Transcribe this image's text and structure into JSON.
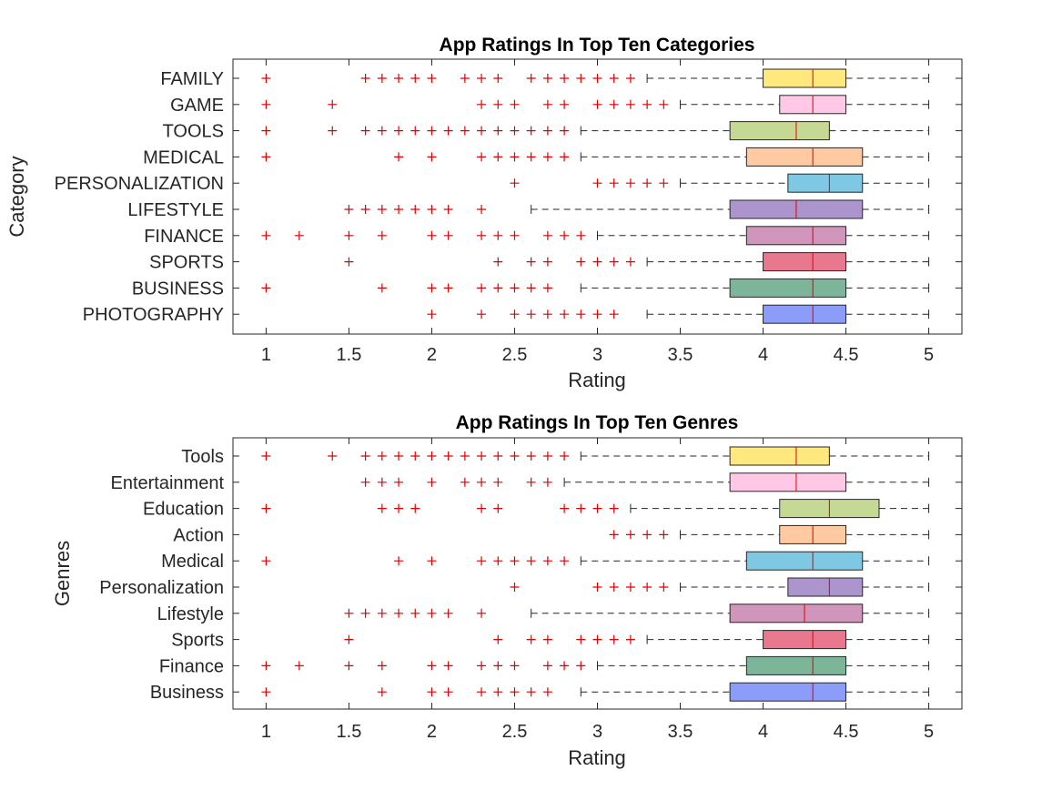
{
  "chart_data": [
    {
      "type": "boxplot",
      "title": "App Ratings In Top Ten Categories",
      "xlabel": "Rating",
      "ylabel": "Category",
      "xlim": [
        0.8,
        5.2
      ],
      "xticks": [
        "1",
        "1.5",
        "2",
        "2.5",
        "3",
        "3.5",
        "4",
        "4.5",
        "5"
      ],
      "grid": false,
      "outlier_color": "#e00000",
      "series": [
        {
          "name": "FAMILY",
          "color": "#ffe97f",
          "whisker_low": 3.3,
          "q1": 4.0,
          "median": 4.3,
          "q3": 4.5,
          "whisker_high": 5.0,
          "outliers": [
            1.0,
            1.6,
            1.7,
            1.8,
            1.9,
            2.0,
            2.2,
            2.3,
            2.4,
            2.6,
            2.7,
            2.8,
            2.9,
            3.0,
            3.1,
            3.2
          ]
        },
        {
          "name": "GAME",
          "color": "#ffc9e6",
          "whisker_low": 3.5,
          "q1": 4.1,
          "median": 4.3,
          "q3": 4.5,
          "whisker_high": 5.0,
          "outliers": [
            1.0,
            1.4,
            2.3,
            2.4,
            2.5,
            2.7,
            2.8,
            3.0,
            3.1,
            3.2,
            3.3,
            3.4
          ]
        },
        {
          "name": "TOOLS",
          "color": "#c6d994",
          "whisker_low": 2.9,
          "q1": 3.8,
          "median": 4.2,
          "q3": 4.4,
          "whisker_high": 5.0,
          "outliers": [
            1.0,
            1.4,
            1.6,
            1.7,
            1.8,
            1.9,
            2.0,
            2.1,
            2.2,
            2.3,
            2.4,
            2.5,
            2.6,
            2.7,
            2.8
          ]
        },
        {
          "name": "MEDICAL",
          "color": "#ffc9a1",
          "whisker_low": 2.9,
          "q1": 3.9,
          "median": 4.3,
          "q3": 4.6,
          "whisker_high": 5.0,
          "outliers": [
            1.0,
            1.8,
            2.0,
            2.3,
            2.4,
            2.5,
            2.6,
            2.7,
            2.8
          ]
        },
        {
          "name": "PERSONALIZATION",
          "color": "#7ec8e3",
          "whisker_low": 3.5,
          "q1": 4.15,
          "median": 4.4,
          "q3": 4.6,
          "whisker_high": 5.0,
          "outliers": [
            2.5,
            3.0,
            3.1,
            3.2,
            3.3,
            3.4
          ]
        },
        {
          "name": "LIFESTYLE",
          "color": "#ac95cc",
          "whisker_low": 2.6,
          "q1": 3.8,
          "median": 4.2,
          "q3": 4.6,
          "whisker_high": 5.0,
          "outliers": [
            1.5,
            1.6,
            1.7,
            1.8,
            1.9,
            2.0,
            2.1,
            2.3
          ]
        },
        {
          "name": "FINANCE",
          "color": "#cf95bb",
          "whisker_low": 3.0,
          "q1": 3.9,
          "median": 4.3,
          "q3": 4.5,
          "whisker_high": 5.0,
          "outliers": [
            1.0,
            1.2,
            1.5,
            1.7,
            2.0,
            2.1,
            2.3,
            2.4,
            2.5,
            2.7,
            2.8,
            2.9
          ]
        },
        {
          "name": "SPORTS",
          "color": "#e8788e",
          "whisker_low": 3.3,
          "q1": 4.0,
          "median": 4.3,
          "q3": 4.5,
          "whisker_high": 5.0,
          "outliers": [
            1.5,
            2.4,
            2.6,
            2.7,
            2.9,
            3.0,
            3.1,
            3.2
          ]
        },
        {
          "name": "BUSINESS",
          "color": "#7db59b",
          "whisker_low": 2.9,
          "q1": 3.8,
          "median": 4.3,
          "q3": 4.5,
          "whisker_high": 5.0,
          "outliers": [
            1.0,
            1.7,
            2.0,
            2.1,
            2.3,
            2.4,
            2.5,
            2.6,
            2.7
          ]
        },
        {
          "name": "PHOTOGRAPHY",
          "color": "#8c9cf9",
          "whisker_low": 3.3,
          "q1": 4.0,
          "median": 4.3,
          "q3": 4.5,
          "whisker_high": 5.0,
          "outliers": [
            2.0,
            2.3,
            2.5,
            2.6,
            2.7,
            2.8,
            2.9,
            3.0,
            3.1
          ]
        }
      ]
    },
    {
      "type": "boxplot",
      "title": "App Ratings In Top Ten Genres",
      "xlabel": "Rating",
      "ylabel": "Genres",
      "xlim": [
        0.8,
        5.2
      ],
      "xticks": [
        "1",
        "1.5",
        "2",
        "2.5",
        "3",
        "3.5",
        "4",
        "4.5",
        "5"
      ],
      "grid": false,
      "outlier_color": "#e00000",
      "series": [
        {
          "name": "Tools",
          "color": "#ffe97f",
          "whisker_low": 2.9,
          "q1": 3.8,
          "median": 4.2,
          "q3": 4.4,
          "whisker_high": 5.0,
          "outliers": [
            1.0,
            1.4,
            1.6,
            1.7,
            1.8,
            1.9,
            2.0,
            2.1,
            2.2,
            2.3,
            2.4,
            2.5,
            2.6,
            2.7,
            2.8
          ]
        },
        {
          "name": "Entertainment",
          "color": "#ffc9e6",
          "whisker_low": 2.8,
          "q1": 3.8,
          "median": 4.2,
          "q3": 4.5,
          "whisker_high": 5.0,
          "outliers": [
            1.6,
            1.7,
            1.8,
            2.0,
            2.2,
            2.3,
            2.4,
            2.6,
            2.7
          ]
        },
        {
          "name": "Education",
          "color": "#c6d994",
          "whisker_low": 3.2,
          "q1": 4.1,
          "median": 4.4,
          "q3": 4.7,
          "whisker_high": 5.0,
          "outliers": [
            1.0,
            1.7,
            1.8,
            1.9,
            2.3,
            2.4,
            2.8,
            2.9,
            3.0,
            3.1
          ]
        },
        {
          "name": "Action",
          "color": "#ffc9a1",
          "whisker_low": 3.5,
          "q1": 4.1,
          "median": 4.3,
          "q3": 4.5,
          "whisker_high": 5.0,
          "outliers": [
            3.1,
            3.2,
            3.3,
            3.4
          ]
        },
        {
          "name": "Medical",
          "color": "#7ec8e3",
          "whisker_low": 2.9,
          "q1": 3.9,
          "median": 4.3,
          "q3": 4.6,
          "whisker_high": 5.0,
          "outliers": [
            1.0,
            1.8,
            2.0,
            2.3,
            2.4,
            2.5,
            2.6,
            2.7,
            2.8
          ]
        },
        {
          "name": "Personalization",
          "color": "#ac95cc",
          "whisker_low": 3.5,
          "q1": 4.15,
          "median": 4.4,
          "q3": 4.6,
          "whisker_high": 5.0,
          "outliers": [
            2.5,
            3.0,
            3.1,
            3.2,
            3.3,
            3.4
          ]
        },
        {
          "name": "Lifestyle",
          "color": "#cf95bb",
          "whisker_low": 2.6,
          "q1": 3.8,
          "median": 4.25,
          "q3": 4.6,
          "whisker_high": 5.0,
          "outliers": [
            1.5,
            1.6,
            1.7,
            1.8,
            1.9,
            2.0,
            2.1,
            2.3
          ]
        },
        {
          "name": "Sports",
          "color": "#e8788e",
          "whisker_low": 3.3,
          "q1": 4.0,
          "median": 4.3,
          "q3": 4.5,
          "whisker_high": 5.0,
          "outliers": [
            1.5,
            2.4,
            2.6,
            2.7,
            2.9,
            3.0,
            3.1,
            3.2
          ]
        },
        {
          "name": "Finance",
          "color": "#7db59b",
          "whisker_low": 3.0,
          "q1": 3.9,
          "median": 4.3,
          "q3": 4.5,
          "whisker_high": 5.0,
          "outliers": [
            1.0,
            1.2,
            1.5,
            1.7,
            2.0,
            2.1,
            2.3,
            2.4,
            2.5,
            2.7,
            2.8,
            2.9
          ]
        },
        {
          "name": "Business",
          "color": "#8c9cf9",
          "whisker_low": 2.9,
          "q1": 3.8,
          "median": 4.3,
          "q3": 4.5,
          "whisker_high": 5.0,
          "outliers": [
            1.0,
            1.7,
            2.0,
            2.1,
            2.3,
            2.4,
            2.5,
            2.6,
            2.7
          ]
        }
      ]
    }
  ]
}
